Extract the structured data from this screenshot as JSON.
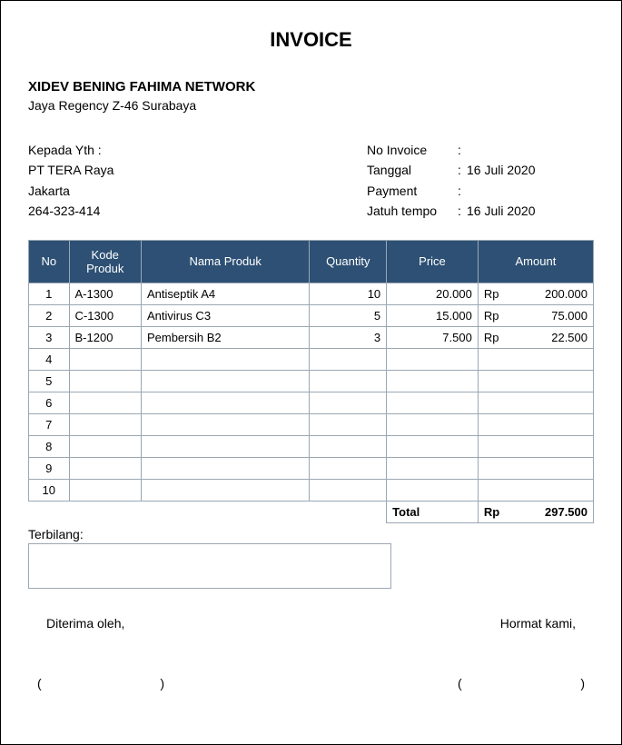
{
  "title": "INVOICE",
  "company": {
    "name": "XIDEV BENING FAHIMA NETWORK",
    "address": "Jaya Regency Z-46 Surabaya"
  },
  "recipient": {
    "heading": "Kepada Yth :",
    "name": "PT TERA Raya",
    "city": "Jakarta",
    "phone": "264-323-414"
  },
  "meta": {
    "no_invoice_label": "No Invoice",
    "no_invoice_value": "",
    "tanggal_label": "Tanggal",
    "tanggal_value": "16 Juli 2020",
    "payment_label": "Payment",
    "payment_value": "",
    "jatuh_tempo_label": "Jatuh tempo",
    "jatuh_tempo_value": "16 Juli 2020"
  },
  "table": {
    "headers": {
      "no": "No",
      "kode": "Kode Produk",
      "nama": "Nama Produk",
      "qty": "Quantity",
      "price": "Price",
      "amount": "Amount"
    },
    "rows": [
      {
        "no": "1",
        "kode": "A-1300",
        "nama": "Antiseptik A4",
        "qty": "10",
        "price": "20.000",
        "cur": "Rp",
        "amount": "200.000"
      },
      {
        "no": "2",
        "kode": "C-1300",
        "nama": "Antivirus  C3",
        "qty": "5",
        "price": "15.000",
        "cur": "Rp",
        "amount": "75.000"
      },
      {
        "no": "3",
        "kode": "B-1200",
        "nama": "Pembersih B2",
        "qty": "3",
        "price": "7.500",
        "cur": "Rp",
        "amount": "22.500"
      },
      {
        "no": "4",
        "kode": "",
        "nama": "",
        "qty": "",
        "price": "",
        "cur": "",
        "amount": ""
      },
      {
        "no": "5",
        "kode": "",
        "nama": "",
        "qty": "",
        "price": "",
        "cur": "",
        "amount": ""
      },
      {
        "no": "6",
        "kode": "",
        "nama": "",
        "qty": "",
        "price": "",
        "cur": "",
        "amount": ""
      },
      {
        "no": "7",
        "kode": "",
        "nama": "",
        "qty": "",
        "price": "",
        "cur": "",
        "amount": ""
      },
      {
        "no": "8",
        "kode": "",
        "nama": "",
        "qty": "",
        "price": "",
        "cur": "",
        "amount": ""
      },
      {
        "no": "9",
        "kode": "",
        "nama": "",
        "qty": "",
        "price": "",
        "cur": "",
        "amount": ""
      },
      {
        "no": "10",
        "kode": "",
        "nama": "",
        "qty": "",
        "price": "",
        "cur": "",
        "amount": ""
      }
    ],
    "terbilang_label": "Terbilang:",
    "total_label": "Total",
    "total_cur": "Rp",
    "total_value": "297.500"
  },
  "signatures": {
    "left_label": "Diterima oleh,",
    "right_label": "Hormat kami,",
    "paren_open": "(",
    "paren_close": ")"
  },
  "style": {
    "header_bg": "#2d5074",
    "header_fg": "#ffffff",
    "border_color": "#9aa7b3",
    "page_border": "#000000",
    "font_family": "Arial",
    "title_fontsize": 22,
    "body_fontsize": 13
  }
}
